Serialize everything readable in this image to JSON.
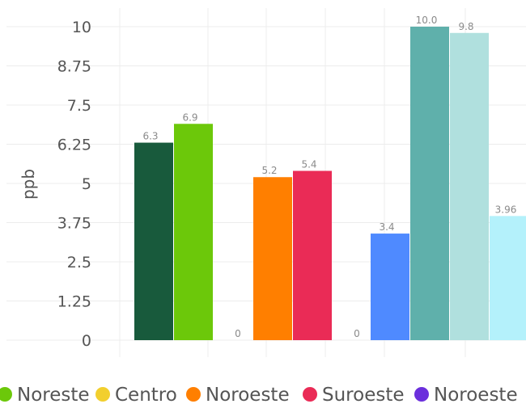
{
  "chart_data": {
    "type": "bar",
    "ylabel": "ppb",
    "yticks": [
      "0",
      "1.25",
      "2.5",
      "3.75",
      "5",
      "6.25",
      "7.5",
      "8.75",
      "10"
    ],
    "ylim": [
      0,
      10
    ],
    "grid": true,
    "legend_placement": "bottom",
    "bars": [
      {
        "group": 1,
        "value": 6.3,
        "label": "6.3",
        "color": "#185a3c"
      },
      {
        "group": 1,
        "value": 6.9,
        "label": "6.9",
        "color": "#6cc80a"
      },
      {
        "group": 2,
        "value": 0,
        "label": "0",
        "color": "#f2cf2e"
      },
      {
        "group": 2,
        "value": 5.2,
        "label": "5.2",
        "color": "#ff7f00"
      },
      {
        "group": 2,
        "value": 5.4,
        "label": "5.4",
        "color": "#ea2b56"
      },
      {
        "group": 3,
        "value": 0,
        "label": "0",
        "color": "#6b2fdc"
      },
      {
        "group": 3,
        "value": 3.4,
        "label": "3.4",
        "color": "#4f8aff"
      },
      {
        "group": 3,
        "value": 10.0,
        "label": "10.0",
        "color": "#5fb0ab"
      },
      {
        "group": 3,
        "value": 9.8,
        "label": "9.8",
        "color": "#b0e0de"
      },
      {
        "group": 3,
        "value": 3.96,
        "label": "3.96",
        "color": "#b4f1fb"
      }
    ],
    "legend": [
      {
        "name": "Noreste",
        "color": "#6cc80a"
      },
      {
        "name": "Centro",
        "color": "#f2cf2e"
      },
      {
        "name": "Noroeste",
        "color": "#ff7f00"
      },
      {
        "name": "Suroeste",
        "color": "#ea2b56"
      },
      {
        "name": "Noroeste",
        "color": "#6b2fdc"
      }
    ]
  }
}
